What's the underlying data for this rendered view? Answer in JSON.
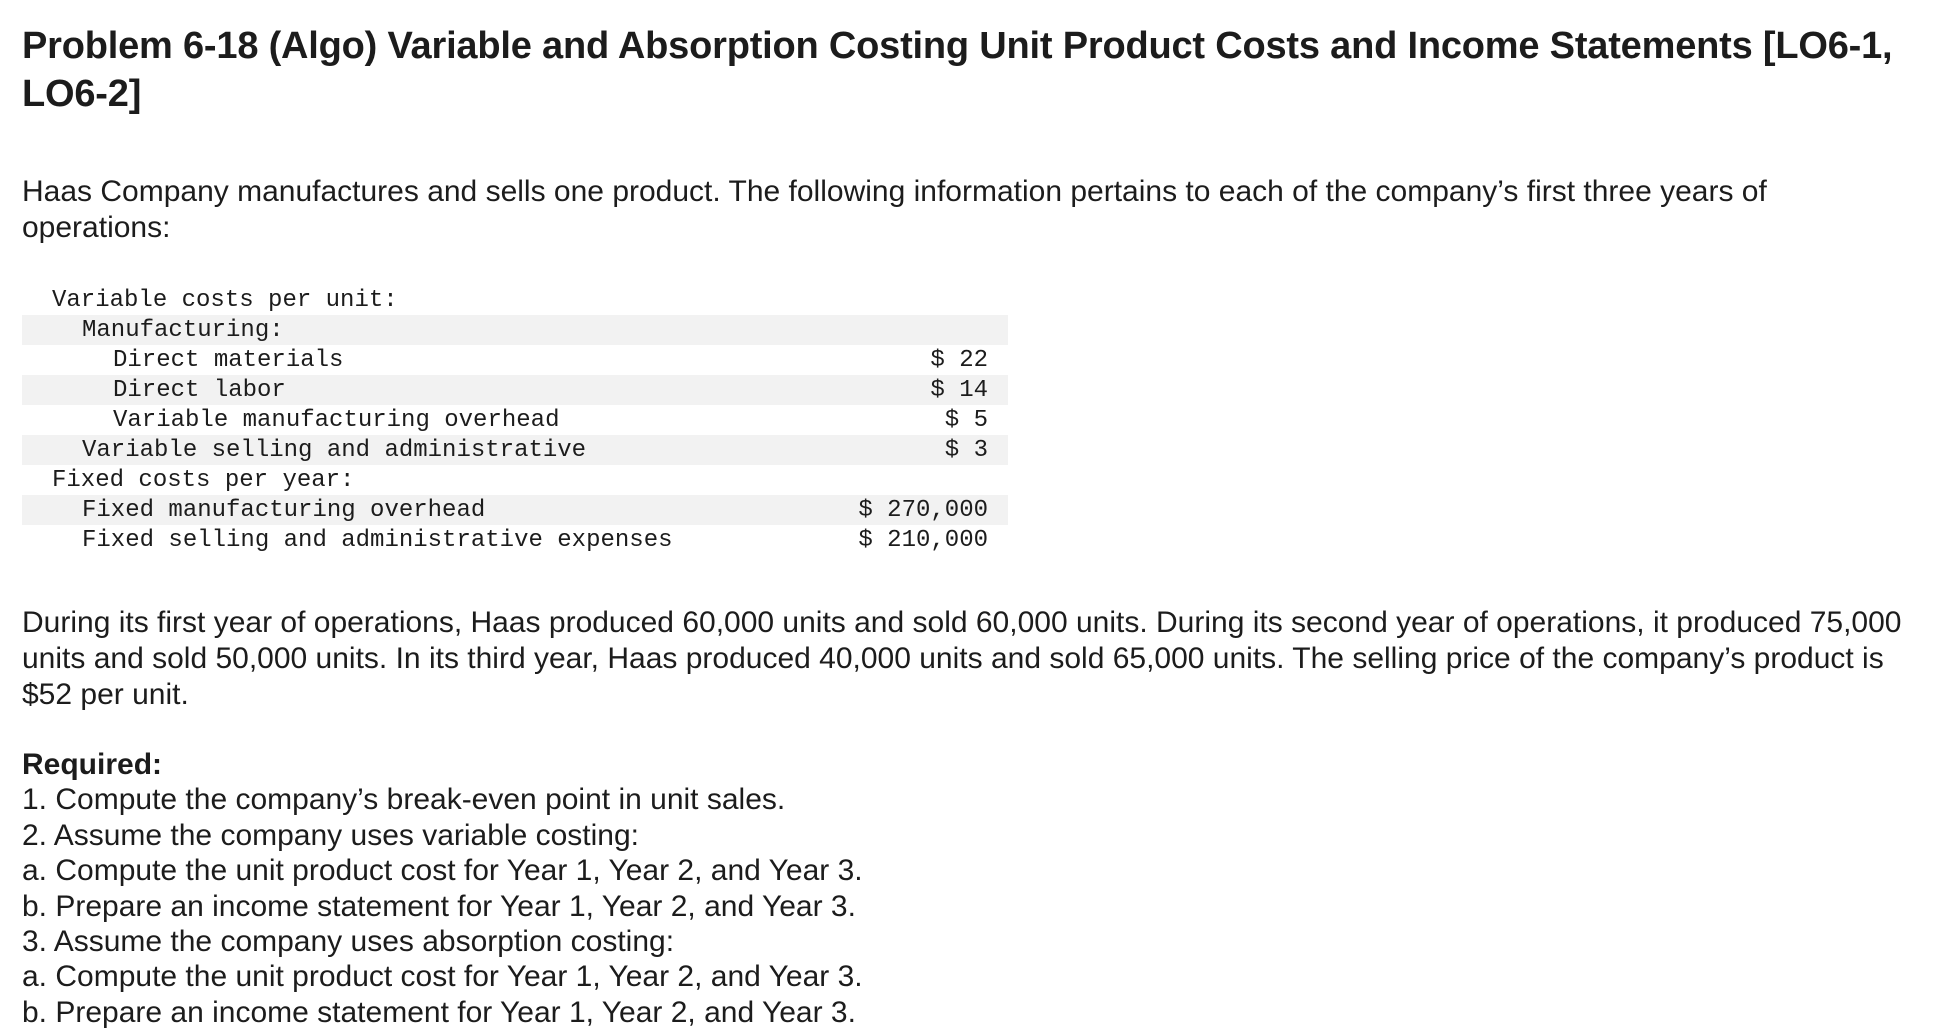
{
  "problem": {
    "title": "Problem 6-18 (Algo) Variable and Absorption Costing Unit Product Costs and Income Statements [LO6-1, LO6-2]",
    "intro": "Haas Company manufactures and sells one product. The following information pertains to each of the company’s first three years of operations:"
  },
  "cost_table": {
    "rows": [
      {
        "label": "Variable costs per unit:",
        "value": ""
      },
      {
        "label": "Manufacturing:",
        "value": ""
      },
      {
        "label": "Direct materials",
        "value": "$ 22"
      },
      {
        "label": "Direct labor",
        "value": "$ 14"
      },
      {
        "label": "Variable manufacturing overhead",
        "value": "$ 5"
      },
      {
        "label": "Variable selling and administrative",
        "value": "$ 3"
      },
      {
        "label": "Fixed costs per year:",
        "value": ""
      },
      {
        "label": "Fixed manufacturing overhead",
        "value": "$ 270,000"
      },
      {
        "label": "Fixed selling and administrative expenses",
        "value": "$ 210,000"
      }
    ]
  },
  "narrative": "During its first year of operations, Haas produced 60,000 units and sold 60,000 units. During its second year of operations, it produced 75,000 units and sold 50,000 units. In its third year, Haas produced 40,000 units and sold 65,000 units. The selling price of the company’s product is $52 per unit.",
  "required": {
    "heading": "Required:",
    "items": [
      "1. Compute the company’s break-even point in unit sales.",
      "2. Assume the company uses variable costing:",
      "a. Compute the unit product cost for Year 1, Year 2, and Year 3.",
      "b. Prepare an income statement for Year 1, Year 2, and Year 3.",
      "3. Assume the company uses absorption costing:",
      "a. Compute the unit product cost for Year 1, Year 2, and Year 3.",
      "b. Prepare an income statement for Year 1, Year 2, and Year 3."
    ]
  }
}
